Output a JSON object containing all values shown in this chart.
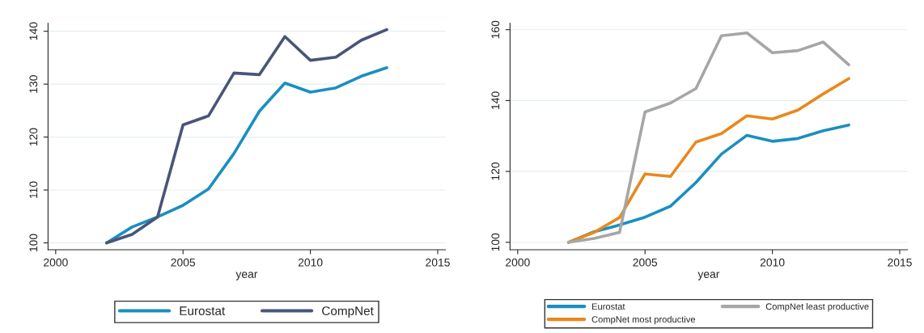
{
  "chart_data": [
    {
      "type": "line",
      "xlabel": "year",
      "x": [
        2002,
        2003,
        2004,
        2005,
        2006,
        2007,
        2008,
        2009,
        2010,
        2011,
        2012,
        2013
      ],
      "xlim": [
        1999.7,
        2015.3
      ],
      "xticks": [
        2000,
        2005,
        2010,
        2015
      ],
      "ylim": [
        98.7,
        141.5
      ],
      "yticks": [
        100,
        110,
        120,
        130,
        140
      ],
      "grid": "y",
      "legend": "bottom",
      "marker": "none",
      "line_style": "solid",
      "series": [
        {
          "name": "Eurostat",
          "color": "#1a8fc0",
          "values": [
            100,
            103.0,
            104.9,
            107.1,
            110.2,
            116.9,
            124.9,
            130.2,
            128.5,
            129.3,
            131.5,
            133.1
          ]
        },
        {
          "name": "CompNet",
          "color": "#4a5478",
          "values": [
            100,
            101.6,
            104.9,
            122.3,
            124.0,
            132.1,
            131.8,
            139.0,
            134.5,
            135.1,
            138.3,
            140.3
          ]
        }
      ]
    },
    {
      "type": "line",
      "xlabel": "year",
      "x": [
        2002,
        2003,
        2004,
        2005,
        2006,
        2007,
        2008,
        2009,
        2010,
        2011,
        2012,
        2013
      ],
      "xlim": [
        1999.7,
        2015.3
      ],
      "xticks": [
        2000,
        2005,
        2010,
        2015
      ],
      "ylim": [
        97.9,
        161.8
      ],
      "yticks": [
        100,
        120,
        140,
        160
      ],
      "grid": "y",
      "legend": "bottom",
      "marker": "none",
      "line_style": "solid",
      "series": [
        {
          "name": "Eurostat",
          "color": "#1a8fc0",
          "values": [
            100,
            103.0,
            104.9,
            107.1,
            110.2,
            116.9,
            124.9,
            130.2,
            128.5,
            129.3,
            131.5,
            133.1
          ]
        },
        {
          "name": "CompNet most productive",
          "color": "#e8891c",
          "values": [
            100,
            102.8,
            107.0,
            119.3,
            118.6,
            128.3,
            130.7,
            135.7,
            134.8,
            137.3,
            141.9,
            146.2
          ]
        },
        {
          "name": "CompNet least productive",
          "color": "#a6a6a6",
          "values": [
            100,
            101.1,
            102.8,
            136.8,
            139.3,
            143.4,
            158.3,
            159.1,
            153.5,
            154.1,
            156.5,
            150.1
          ]
        }
      ]
    }
  ]
}
